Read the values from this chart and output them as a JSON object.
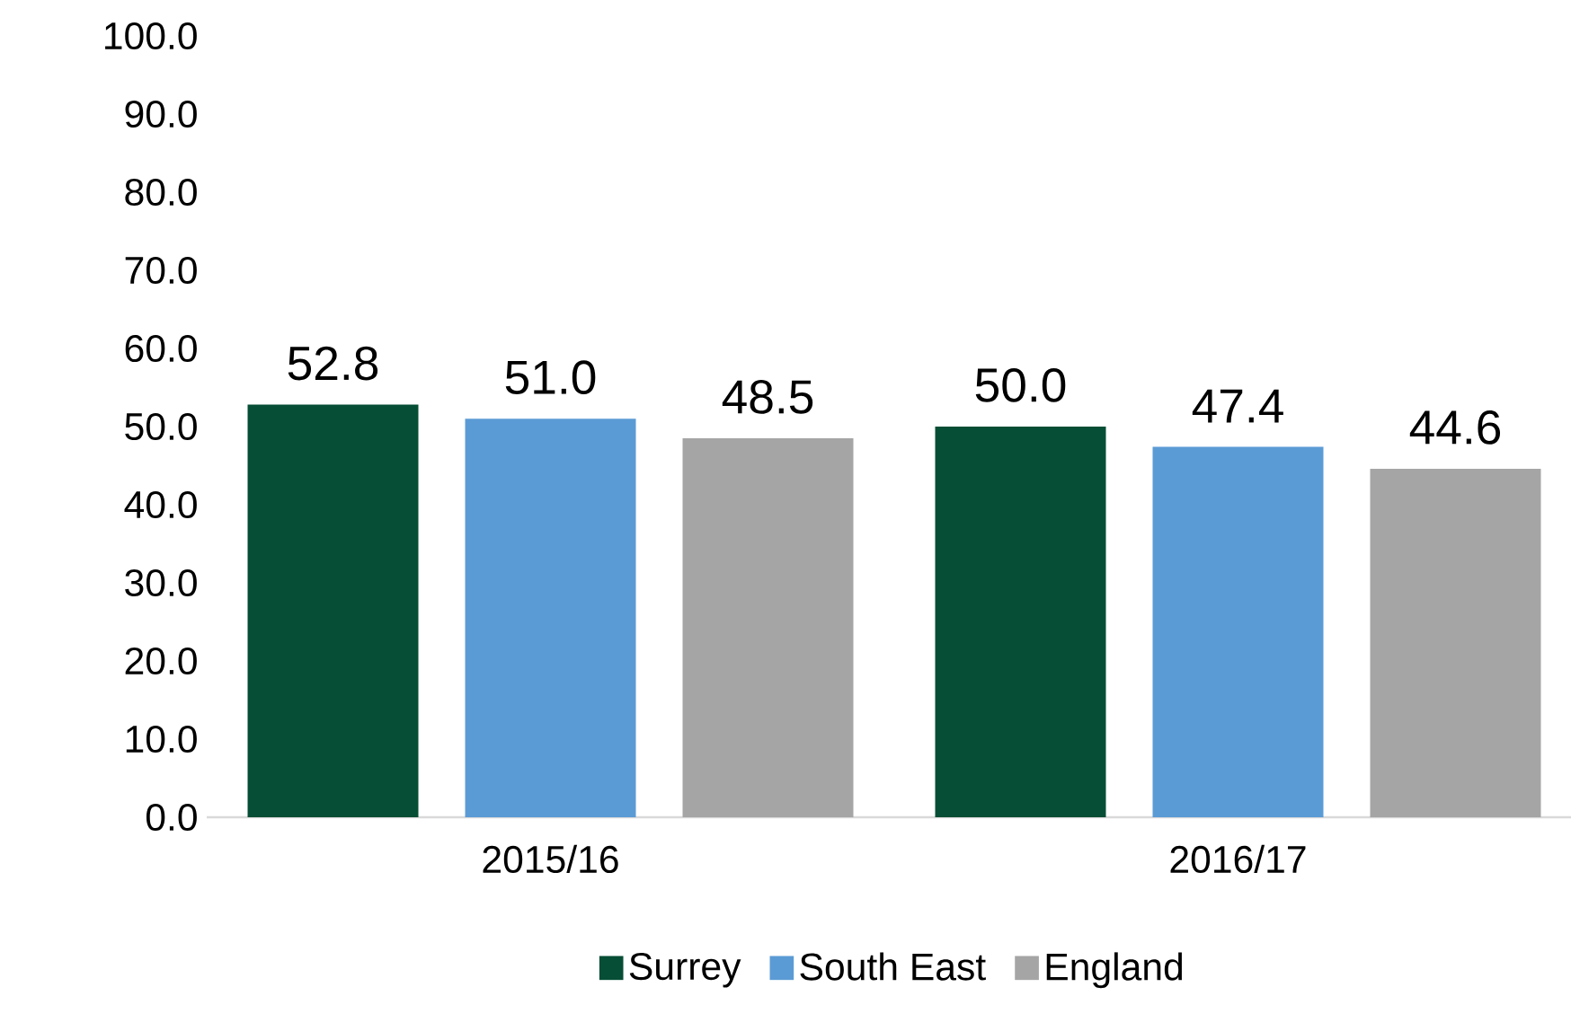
{
  "chart_data": {
    "type": "bar",
    "categories": [
      "2015/16",
      "2016/17"
    ],
    "series": [
      {
        "name": "Surrey",
        "color": "#064e35",
        "values": [
          52.8,
          50.0
        ],
        "value_labels": [
          "52.8",
          "50.0"
        ]
      },
      {
        "name": "South East",
        "color": "#5b9bd5",
        "values": [
          51.0,
          47.4
        ],
        "value_labels": [
          "51.0",
          "47.4"
        ]
      },
      {
        "name": "England",
        "color": "#a5a5a5",
        "values": [
          48.5,
          44.6
        ],
        "value_labels": [
          "48.5",
          "44.6"
        ]
      }
    ],
    "ylim": [
      0,
      100
    ],
    "yticks": [
      {
        "value": 0,
        "label": "0.0"
      },
      {
        "value": 10,
        "label": "10.0"
      },
      {
        "value": 20,
        "label": "20.0"
      },
      {
        "value": 30,
        "label": "30.0"
      },
      {
        "value": 40,
        "label": "40.0"
      },
      {
        "value": 50,
        "label": "50.0"
      },
      {
        "value": 60,
        "label": "60.0"
      },
      {
        "value": 70,
        "label": "70.0"
      },
      {
        "value": 80,
        "label": "80.0"
      },
      {
        "value": 90,
        "label": "90.0"
      },
      {
        "value": 100,
        "label": "100.0"
      }
    ],
    "legend": "bottom"
  }
}
